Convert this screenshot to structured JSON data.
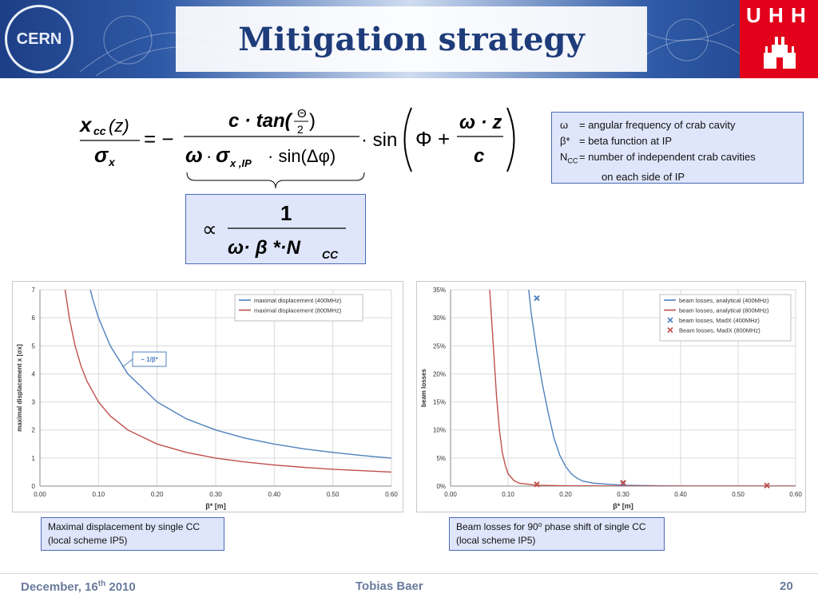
{
  "header": {
    "title": "Mitigation strategy",
    "cern_logo": "CERN",
    "uhh_logo": "U H H"
  },
  "formula": {
    "lhs_num": "x",
    "lhs_num_sub": "cc",
    "lhs_num_arg": "(z)",
    "lhs_den": "σ",
    "lhs_den_sub": "x",
    "eq": "= −",
    "rhs_num": "c · tan(",
    "theta": "Θ",
    "two": "2",
    "rhs_num_close": ")",
    "rhs_den_w": "ω",
    "rhs_den_dot": "·",
    "rhs_den_sigma": "σ",
    "rhs_den_sub": "x ,IP",
    "rhs_den_sin": "· sin(Δφ)",
    "sin_label": "· sin",
    "phi_plus": "Φ +",
    "wz": "ω · z",
    "c": "c"
  },
  "proportional": {
    "symbol": "∝",
    "numerator": "1",
    "denominator": "ω· β *·N",
    "denominator_sub": "CC"
  },
  "definitions": [
    {
      "symbol": "ω",
      "text": "= angular frequency of crab cavity"
    },
    {
      "symbol": "β*",
      "text": "= beta function at IP"
    },
    {
      "symbol": "N",
      "symbol_sub": "CC",
      "text": "= number of independent crab cavities",
      "text2": "on each side of IP"
    }
  ],
  "captions": {
    "left_line1": "Maximal displacement by single CC",
    "left_line2": "(local scheme IP5)",
    "right_line1": "Beam losses for 90⁰ phase shift of single CC",
    "right_line2": "(local scheme IP5)"
  },
  "footer": {
    "date": "December, 16",
    "date_sup": "th",
    "date_year": " 2010",
    "author": "Tobias Baer",
    "page": "20"
  },
  "colors": {
    "blue": "#4f81bd",
    "red": "#c0504d"
  },
  "chart_data": [
    {
      "type": "line",
      "title": "",
      "xlabel": "β* [m]",
      "ylabel": "maximal displacement x [σx]",
      "xlim": [
        0,
        0.6
      ],
      "ylim": [
        0,
        7
      ],
      "xticks": [
        "0.00",
        "0.10",
        "0.20",
        "0.30",
        "0.40",
        "0.50",
        "0.60"
      ],
      "yticks": [
        "0",
        "1",
        "2",
        "3",
        "4",
        "5",
        "6",
        "7"
      ],
      "grid": true,
      "legend_position": "top-right",
      "annotation": "~ 1/β*",
      "series": [
        {
          "name": "maximal displacement (400MHz)",
          "color": "#4f81bd",
          "x": [
            0.086,
            0.09,
            0.1,
            0.12,
            0.15,
            0.2,
            0.25,
            0.3,
            0.35,
            0.4,
            0.45,
            0.5,
            0.55,
            0.6
          ],
          "y": [
            7.0,
            6.67,
            6.0,
            5.0,
            4.0,
            3.0,
            2.4,
            2.0,
            1.71,
            1.5,
            1.33,
            1.2,
            1.09,
            1.0
          ]
        },
        {
          "name": "maximal displacement (800MHz)",
          "color": "#c0504d",
          "x": [
            0.043,
            0.05,
            0.06,
            0.07,
            0.08,
            0.1,
            0.12,
            0.15,
            0.2,
            0.25,
            0.3,
            0.35,
            0.4,
            0.45,
            0.5,
            0.55,
            0.6
          ],
          "y": [
            7.0,
            6.0,
            5.0,
            4.29,
            3.75,
            3.0,
            2.5,
            2.0,
            1.5,
            1.2,
            1.0,
            0.86,
            0.75,
            0.67,
            0.6,
            0.55,
            0.5
          ]
        }
      ]
    },
    {
      "type": "line",
      "title": "",
      "xlabel": "β* [m]",
      "ylabel": "beam losses",
      "xlim": [
        0,
        0.6
      ],
      "ylim": [
        0,
        35
      ],
      "xticks": [
        "0.00",
        "0.10",
        "0.20",
        "0.30",
        "0.40",
        "0.50",
        "0.60"
      ],
      "yticks": [
        "0%",
        "5%",
        "10%",
        "15%",
        "20%",
        "25%",
        "30%",
        "35%"
      ],
      "grid": true,
      "legend_position": "top-right",
      "series": [
        {
          "name": "beam losses, analytical (400MHz)",
          "color": "#4f81bd",
          "kind": "line",
          "x": [
            0.136,
            0.14,
            0.15,
            0.16,
            0.17,
            0.18,
            0.19,
            0.2,
            0.21,
            0.22,
            0.23,
            0.25,
            0.3,
            0.4,
            0.5,
            0.6
          ],
          "y": [
            35,
            31,
            24,
            18,
            13,
            8.5,
            5.5,
            3.5,
            2.2,
            1.4,
            0.9,
            0.5,
            0.15,
            0.02,
            0,
            0
          ]
        },
        {
          "name": "beam losses, analytical (800MHz)",
          "color": "#c0504d",
          "kind": "line",
          "x": [
            0.068,
            0.07,
            0.075,
            0.08,
            0.085,
            0.09,
            0.095,
            0.1,
            0.11,
            0.12,
            0.15,
            0.2,
            0.3,
            0.4,
            0.5,
            0.6
          ],
          "y": [
            35,
            32,
            24,
            16,
            10,
            6,
            3.8,
            2.2,
            1.0,
            0.5,
            0.15,
            0.05,
            0.01,
            0,
            0,
            0
          ]
        },
        {
          "name": "beam losses, MadX (400MHz)",
          "color": "#4f81bd",
          "kind": "marker",
          "x": [
            0.15,
            0.3
          ],
          "y": [
            33.5,
            0.5
          ]
        },
        {
          "name": "Beam losses, MadX (800MHz)",
          "color": "#c0504d",
          "kind": "marker",
          "x": [
            0.15,
            0.3,
            0.55
          ],
          "y": [
            0.3,
            0.6,
            0.1
          ]
        }
      ]
    }
  ]
}
